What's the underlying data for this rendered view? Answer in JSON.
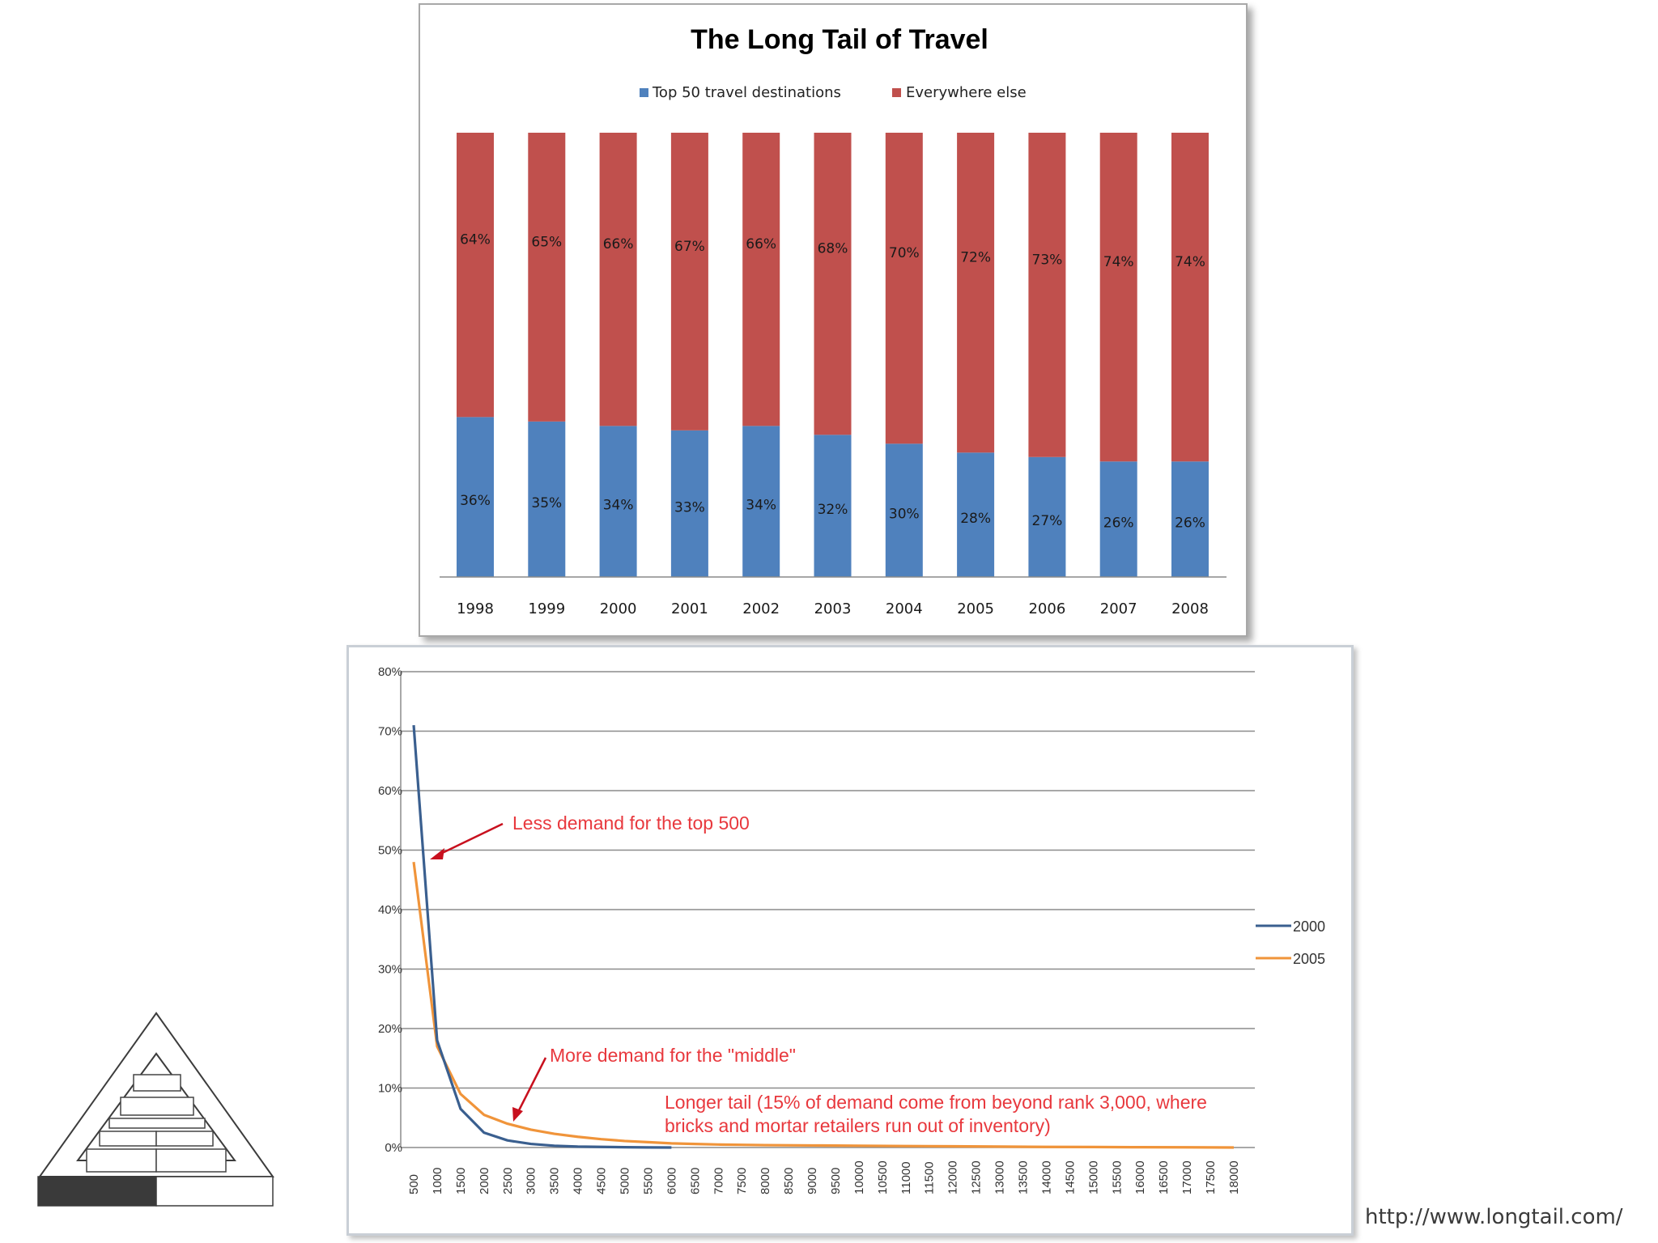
{
  "slide": {
    "source_link": "http://www.longtail.com/"
  },
  "chart_data": [
    {
      "type": "bar",
      "stacked": true,
      "percent_stacked": true,
      "title": "The Long Tail of Travel",
      "legend_position": "top",
      "categories": [
        "1998",
        "1999",
        "2000",
        "2001",
        "2002",
        "2003",
        "2004",
        "2005",
        "2006",
        "2007",
        "2008"
      ],
      "series": [
        {
          "name": "Top 50 travel destinations",
          "color": "#4f81bd",
          "values": [
            36,
            35,
            34,
            33,
            34,
            32,
            30,
            28,
            27,
            26,
            26
          ],
          "labels": [
            "36%",
            "35%",
            "34%",
            "33%",
            "34%",
            "32%",
            "30%",
            "28%",
            "27%",
            "26%",
            "26%"
          ]
        },
        {
          "name": "Everywhere else",
          "color": "#c0504d",
          "values": [
            64,
            65,
            66,
            67,
            66,
            68,
            70,
            72,
            73,
            74,
            74
          ],
          "labels": [
            "64%",
            "65%",
            "66%",
            "67%",
            "66%",
            "68%",
            "70%",
            "72%",
            "73%",
            "74%",
            "74%"
          ]
        }
      ],
      "ylim": [
        0,
        100
      ],
      "grid": false
    },
    {
      "type": "line",
      "x_tick_labels": [
        "500",
        "1000",
        "1500",
        "2000",
        "2500",
        "3000",
        "3500",
        "4000",
        "4500",
        "5000",
        "5500",
        "6000",
        "6500",
        "7000",
        "7500",
        "8000",
        "8500",
        "9000",
        "9500",
        "10000",
        "10500",
        "11000",
        "11500",
        "12000",
        "12500",
        "13000",
        "13500",
        "14000",
        "14500",
        "15000",
        "15500",
        "16000",
        "16500",
        "17000",
        "17500",
        "18000"
      ],
      "y_tick_labels": [
        "0%",
        "10%",
        "20%",
        "30%",
        "40%",
        "50%",
        "60%",
        "70%",
        "80%"
      ],
      "xlim": [
        500,
        18000
      ],
      "ylim": [
        0,
        80
      ],
      "grid": true,
      "legend_position": "right",
      "series": [
        {
          "name": "2000",
          "color": "#3a5f8f",
          "x": [
            500,
            1000,
            1500,
            2000,
            2500,
            3000,
            3500,
            4000,
            4500,
            5000,
            5500,
            6000
          ],
          "y": [
            71,
            18,
            6.5,
            2.5,
            1.2,
            0.6,
            0.3,
            0.15,
            0.1,
            0.05,
            0.02,
            0
          ]
        },
        {
          "name": "2005",
          "color": "#f0943a",
          "x": [
            500,
            1000,
            1500,
            2000,
            2500,
            3000,
            3500,
            4000,
            4500,
            5000,
            5500,
            6000,
            6500,
            7000,
            7500,
            8000,
            9000,
            10000,
            11000,
            12000,
            13000,
            14000,
            15000,
            16000,
            17000,
            18000
          ],
          "y": [
            48,
            17,
            9,
            5.5,
            4,
            3,
            2.3,
            1.8,
            1.4,
            1.1,
            0.9,
            0.7,
            0.6,
            0.5,
            0.45,
            0.4,
            0.35,
            0.3,
            0.25,
            0.2,
            0.15,
            0.1,
            0.08,
            0.05,
            0.03,
            0
          ]
        }
      ],
      "annotations": [
        {
          "text": "Less demand for the top 500",
          "color": "#e8383d"
        },
        {
          "text": "More demand for the \"middle\"",
          "color": "#e8383d"
        },
        {
          "text": "Longer tail (15% of demand come from beyond rank 3,000, where",
          "color": "#e8383d"
        },
        {
          "text": "bricks and mortar retailers run out of inventory)",
          "color": "#e8383d"
        }
      ]
    }
  ]
}
